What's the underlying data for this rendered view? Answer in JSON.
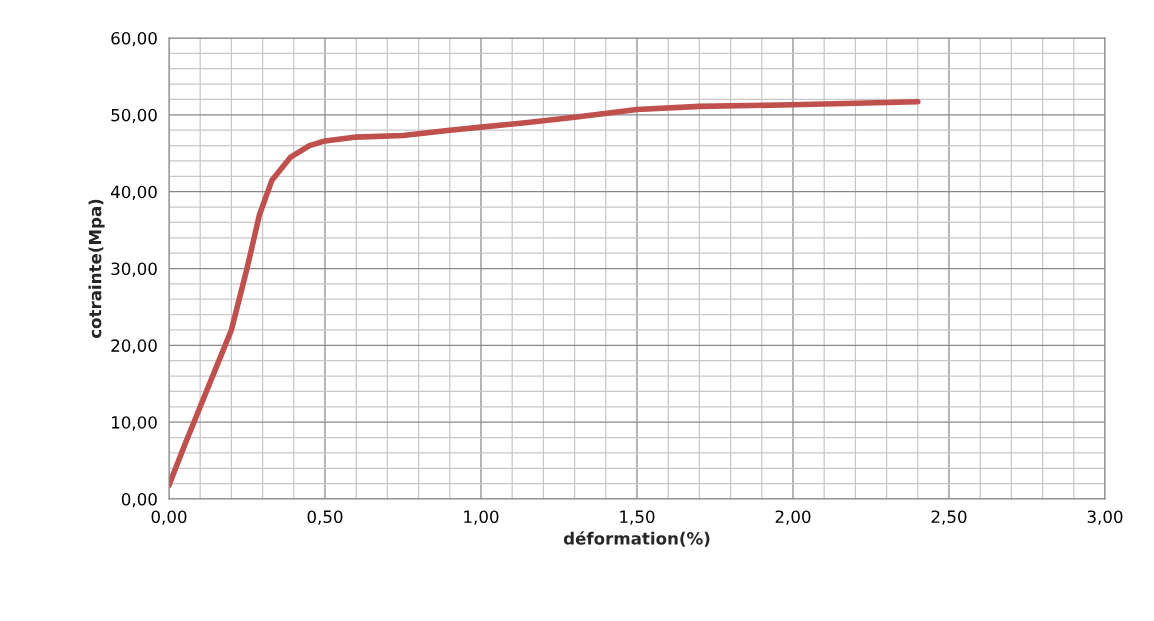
{
  "chart_data": {
    "type": "line",
    "xlabel": "déformation(%)",
    "ylabel": "cotrainte(Mpa)",
    "series": [
      {
        "color": "#c0504d",
        "x": [
          0.0,
          0.05,
          0.1,
          0.15,
          0.2,
          0.25,
          0.29,
          0.33,
          0.39,
          0.45,
          0.5,
          0.6,
          0.75,
          0.9,
          1.0,
          1.15,
          1.3,
          1.5,
          1.7,
          2.0,
          2.2,
          2.4
        ],
        "values": [
          1.8,
          7.0,
          12.0,
          17.0,
          22.0,
          30.0,
          37.0,
          41.5,
          44.5,
          46.0,
          46.6,
          47.1,
          47.3,
          48.0,
          48.4,
          49.0,
          49.7,
          50.7,
          51.1,
          51.3,
          51.5,
          51.7
        ]
      }
    ],
    "xlim": [
      0,
      3
    ],
    "ylim": [
      0,
      60
    ],
    "xticks": [
      {
        "value": 0.0,
        "label": "0,00"
      },
      {
        "value": 0.1,
        "label": null
      },
      {
        "value": 0.2,
        "label": null
      },
      {
        "value": 0.3,
        "label": null
      },
      {
        "value": 0.4,
        "label": null
      },
      {
        "value": 0.5,
        "label": "0,50"
      },
      {
        "value": 0.6,
        "label": null
      },
      {
        "value": 0.7,
        "label": null
      },
      {
        "value": 0.8,
        "label": null
      },
      {
        "value": 0.9,
        "label": null
      },
      {
        "value": 1.0,
        "label": "1,00"
      },
      {
        "value": 1.1,
        "label": null
      },
      {
        "value": 1.2,
        "label": null
      },
      {
        "value": 1.3,
        "label": null
      },
      {
        "value": 1.4,
        "label": null
      },
      {
        "value": 1.5,
        "label": "1,50"
      },
      {
        "value": 1.6,
        "label": null
      },
      {
        "value": 1.7,
        "label": null
      },
      {
        "value": 1.8,
        "label": null
      },
      {
        "value": 1.9,
        "label": null
      },
      {
        "value": 2.0,
        "label": "2,00"
      },
      {
        "value": 2.1,
        "label": null
      },
      {
        "value": 2.2,
        "label": null
      },
      {
        "value": 2.3,
        "label": null
      },
      {
        "value": 2.4,
        "label": null
      },
      {
        "value": 2.5,
        "label": "2,50"
      },
      {
        "value": 2.6,
        "label": null
      },
      {
        "value": 2.7,
        "label": null
      },
      {
        "value": 2.8,
        "label": null
      },
      {
        "value": 2.9,
        "label": null
      },
      {
        "value": 3.0,
        "label": "3,00"
      }
    ],
    "yticks": [
      {
        "value": 0,
        "label": "0,00"
      },
      {
        "value": 2,
        "label": null
      },
      {
        "value": 4,
        "label": null
      },
      {
        "value": 6,
        "label": null
      },
      {
        "value": 8,
        "label": null
      },
      {
        "value": 10,
        "label": "10,00"
      },
      {
        "value": 12,
        "label": null
      },
      {
        "value": 14,
        "label": null
      },
      {
        "value": 16,
        "label": null
      },
      {
        "value": 18,
        "label": null
      },
      {
        "value": 20,
        "label": "20,00"
      },
      {
        "value": 22,
        "label": null
      },
      {
        "value": 24,
        "label": null
      },
      {
        "value": 26,
        "label": null
      },
      {
        "value": 28,
        "label": null
      },
      {
        "value": 30,
        "label": "30,00"
      },
      {
        "value": 32,
        "label": null
      },
      {
        "value": 34,
        "label": null
      },
      {
        "value": 36,
        "label": null
      },
      {
        "value": 38,
        "label": null
      },
      {
        "value": 40,
        "label": "40,00"
      },
      {
        "value": 42,
        "label": null
      },
      {
        "value": 44,
        "label": null
      },
      {
        "value": 46,
        "label": null
      },
      {
        "value": 48,
        "label": null
      },
      {
        "value": 50,
        "label": "50,00"
      },
      {
        "value": 52,
        "label": null
      },
      {
        "value": 54,
        "label": null
      },
      {
        "value": 56,
        "label": null
      },
      {
        "value": 58,
        "label": null
      },
      {
        "value": 60,
        "label": "60,00"
      }
    ],
    "grid": true,
    "marker": "none",
    "line_style": "solid"
  }
}
